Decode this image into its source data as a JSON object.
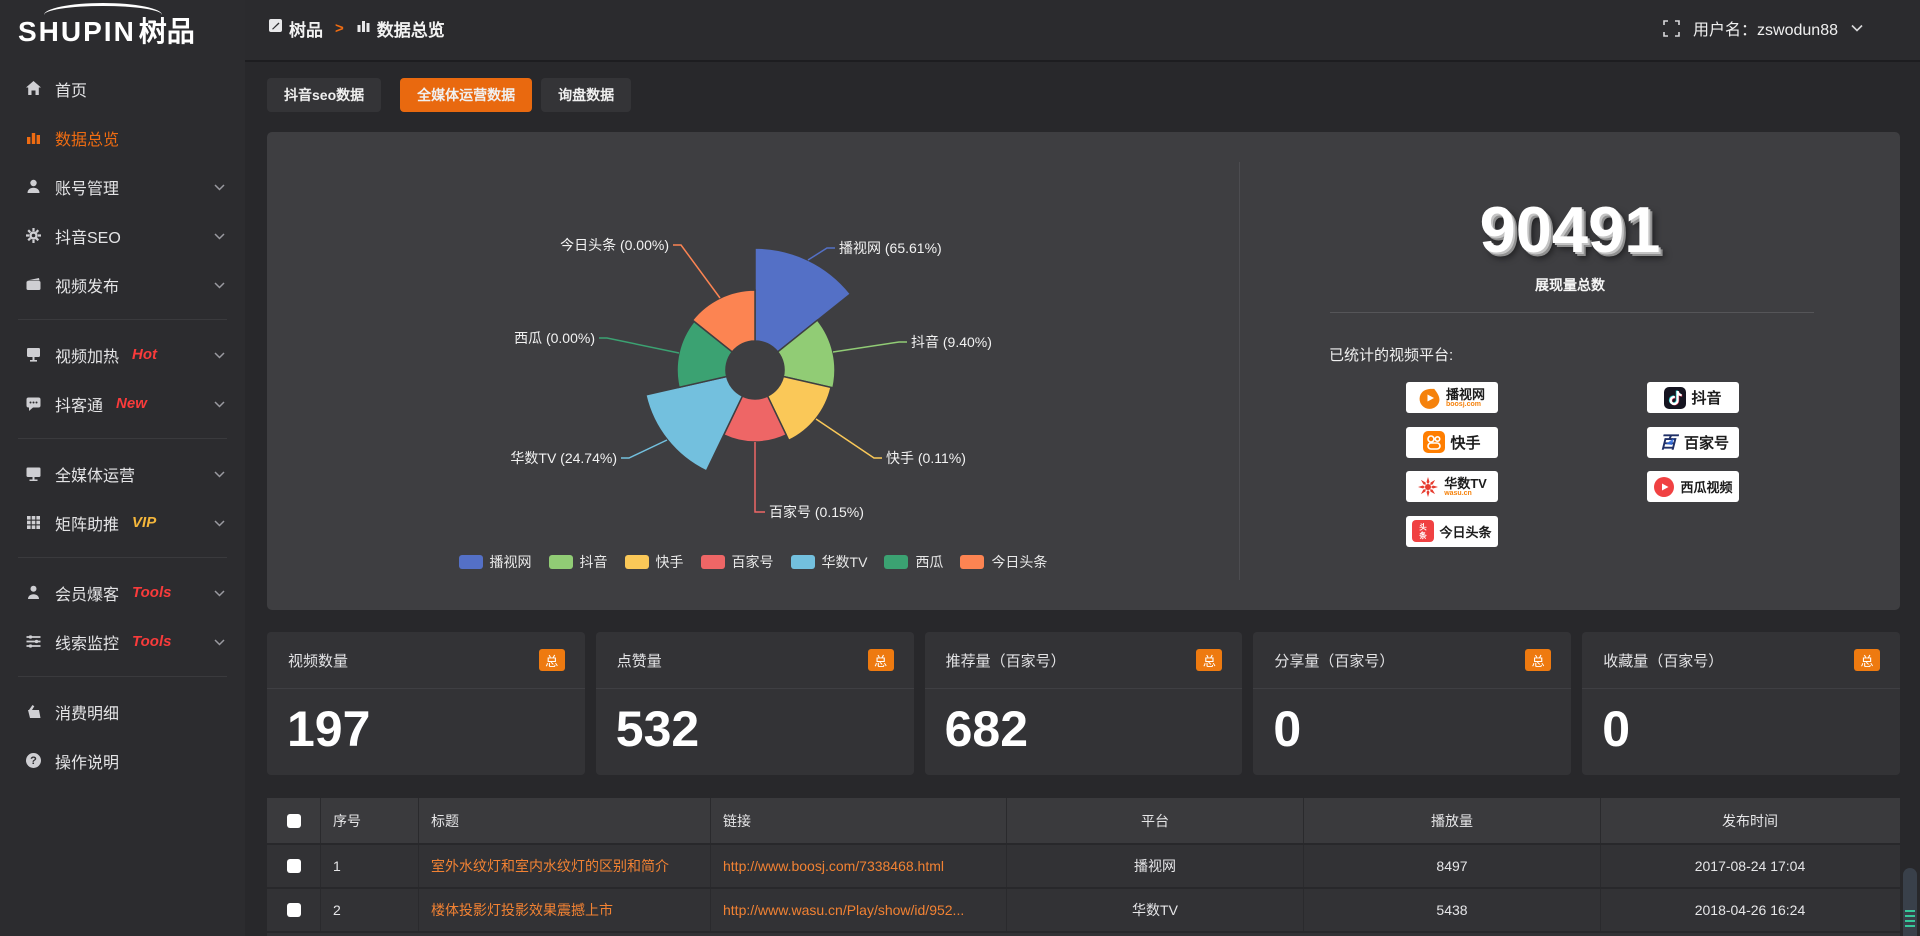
{
  "header": {
    "logo_en": "SHUPIN",
    "logo_cn": "树品",
    "breadcrumb": [
      {
        "label": "树品",
        "icon": "edit-square-icon"
      },
      {
        "label": "数据总览",
        "icon": "bar-chart-icon"
      }
    ],
    "breadcrumb_sep": ">",
    "username": "用户名：zswodun88"
  },
  "sidebar": {
    "items": [
      {
        "label": "首页",
        "icon": "home",
        "active": false,
        "chevron": false
      },
      {
        "label": "数据总览",
        "icon": "chart",
        "active": true,
        "chevron": false
      },
      {
        "label": "账号管理",
        "icon": "user",
        "chevron": true
      },
      {
        "label": "抖音SEO",
        "icon": "gear",
        "chevron": true
      },
      {
        "label": "视频发布",
        "icon": "video",
        "chevron": true,
        "divider_after": true
      },
      {
        "label": "视频加热",
        "icon": "heat",
        "chevron": true,
        "badge": "Hot",
        "badge_color": "#f93b3b"
      },
      {
        "label": "抖客通",
        "icon": "chat",
        "chevron": true,
        "badge": "New",
        "badge_color": "#f93b3b",
        "divider_after": true
      },
      {
        "label": "全媒体运营",
        "icon": "monitor",
        "chevron": true
      },
      {
        "label": "矩阵助推",
        "icon": "grid",
        "chevron": true,
        "badge": "VIP",
        "badge_color": "#f5b73b",
        "divider_after": true
      },
      {
        "label": "会员爆客",
        "icon": "person",
        "chevron": true,
        "badge": "Tools",
        "badge_color": "#f93b3b"
      },
      {
        "label": "线索监控",
        "icon": "sliders",
        "chevron": true,
        "badge": "Tools",
        "badge_color": "#f93b3b",
        "divider_after": true
      },
      {
        "label": "消费明细",
        "icon": "wallet",
        "chevron": false
      },
      {
        "label": "操作说明",
        "icon": "question",
        "chevron": false
      }
    ]
  },
  "tabs": [
    {
      "label": "抖音seo数据",
      "active": false
    },
    {
      "label": "全媒体运营数据",
      "active": true
    },
    {
      "label": "询盘数据",
      "active": false
    }
  ],
  "chart_data": {
    "type": "pie",
    "rose": true,
    "title": "",
    "series": [
      {
        "name": "播视网",
        "value": 65.61,
        "color": "#5470c6",
        "radius_px": 122
      },
      {
        "name": "抖音",
        "value": 9.4,
        "color": "#91cc75",
        "radius_px": 80
      },
      {
        "name": "快手",
        "value": 0.11,
        "color": "#fac858",
        "radius_px": 78
      },
      {
        "name": "百家号",
        "value": 0.15,
        "color": "#ee6666",
        "radius_px": 72
      },
      {
        "name": "华数TV",
        "value": 24.74,
        "color": "#73c0de",
        "radius_px": 112
      },
      {
        "name": "西瓜",
        "value": 0.0,
        "color": "#3ba272",
        "radius_px": 78
      },
      {
        "name": "今日头条",
        "value": 0.0,
        "color": "#fc8452",
        "radius_px": 80
      }
    ],
    "label_format": "{name} ({value}%)",
    "legend_position": "bottom",
    "inner_radius_px": 29
  },
  "summary": {
    "total": "90491",
    "total_label": "展现量总数",
    "platforms_label": "已统计的视频平台:",
    "platforms": [
      {
        "name": "播视网",
        "sub": "boosj.com",
        "logo": "boosj",
        "col": 0,
        "row": 0
      },
      {
        "name": "抖音",
        "sub": "",
        "logo": "douyin",
        "col": 1,
        "row": 0
      },
      {
        "name": "快手",
        "sub": "",
        "logo": "kuaishou",
        "col": 0,
        "row": 1
      },
      {
        "name": "百家号",
        "sub": "",
        "logo": "baijiahao",
        "col": 1,
        "row": 1
      },
      {
        "name": "华数TV",
        "sub": "wasu.cn",
        "logo": "wasu",
        "col": 0,
        "row": 2
      },
      {
        "name": "西瓜视频",
        "sub": "",
        "logo": "xigua",
        "col": 1,
        "row": 2
      },
      {
        "name": "今日头条",
        "sub": "",
        "logo": "toutiao",
        "col": 0,
        "row": 3
      }
    ]
  },
  "stats": [
    {
      "title": "视频数量",
      "badge": "总",
      "value": "197"
    },
    {
      "title": "点赞量",
      "badge": "总",
      "value": "532"
    },
    {
      "title": "推荐量（百家号）",
      "badge": "总",
      "value": "682"
    },
    {
      "title": "分享量（百家号）",
      "badge": "总",
      "value": "0"
    },
    {
      "title": "收藏量（百家号）",
      "badge": "总",
      "value": "0"
    }
  ],
  "table": {
    "columns": [
      "序号",
      "标题",
      "链接",
      "平台",
      "播放量",
      "发布时间"
    ],
    "rows": [
      {
        "index": "1",
        "title": "室外水纹灯和室内水纹灯的区别和简介",
        "link": "http://www.boosj.com/7338468.html",
        "platform": "播视网",
        "plays": "8497",
        "time": "2017-08-24 17:04"
      },
      {
        "index": "2",
        "title": "楼体投影灯投影效果震撼上市",
        "link": "http://www.wasu.cn/Play/show/id/952...",
        "platform": "华数TV",
        "plays": "5438",
        "time": "2018-04-26 16:24"
      }
    ]
  }
}
